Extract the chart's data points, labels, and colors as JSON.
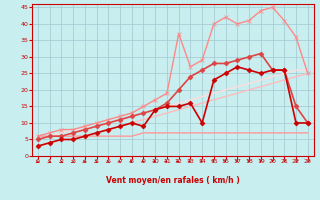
{
  "title": "",
  "xlabel": "Vent moyen/en rafales ( km/h )",
  "ylabel": "",
  "xlim": [
    -0.5,
    23.5
  ],
  "ylim": [
    0,
    46
  ],
  "xticks": [
    0,
    1,
    2,
    3,
    4,
    5,
    6,
    7,
    8,
    9,
    10,
    11,
    12,
    13,
    14,
    15,
    16,
    17,
    18,
    19,
    20,
    21,
    22,
    23
  ],
  "yticks": [
    0,
    5,
    10,
    15,
    20,
    25,
    30,
    35,
    40,
    45
  ],
  "background_color": "#c8eef0",
  "grid_color": "#a0c8d0",
  "series": [
    {
      "x": [
        0,
        1,
        2,
        3,
        4,
        5,
        6,
        7,
        8,
        9,
        10,
        11,
        12,
        13,
        14,
        15,
        16,
        17,
        18,
        19,
        20,
        21,
        22,
        23
      ],
      "y": [
        6,
        6,
        6,
        6,
        6,
        6,
        6,
        6,
        6,
        7,
        7,
        7,
        7,
        7,
        7,
        7,
        7,
        7,
        7,
        7,
        7,
        7,
        7,
        7
      ],
      "color": "#ff9999",
      "lw": 1.0,
      "marker": null,
      "ms": 0,
      "ls": "-"
    },
    {
      "x": [
        0,
        1,
        2,
        3,
        4,
        5,
        6,
        7,
        8,
        9,
        10,
        11,
        12,
        13,
        14,
        15,
        16,
        17,
        18,
        19,
        20,
        21,
        22,
        23
      ],
      "y": [
        3,
        4,
        5,
        5,
        6,
        7,
        8,
        9,
        10,
        11,
        12,
        13,
        14,
        15,
        16,
        17,
        18,
        19,
        20,
        21,
        22,
        23,
        24,
        25
      ],
      "color": "#ffbbbb",
      "lw": 1.0,
      "marker": null,
      "ms": 0,
      "ls": "-"
    },
    {
      "x": [
        0,
        1,
        2,
        3,
        4,
        5,
        6,
        7,
        8,
        9,
        10,
        11,
        12,
        13,
        14,
        15,
        16,
        17,
        18,
        19,
        20,
        21,
        22,
        23
      ],
      "y": [
        5,
        6,
        7,
        8,
        8,
        9,
        10,
        11,
        12,
        13,
        14,
        15,
        16,
        17,
        18,
        19,
        20,
        21,
        22,
        23,
        24,
        25,
        26,
        26
      ],
      "color": "#ffdddd",
      "lw": 1.0,
      "marker": null,
      "ms": 0,
      "ls": "-"
    },
    {
      "x": [
        0,
        1,
        2,
        3,
        4,
        5,
        6,
        7,
        8,
        9,
        10,
        11,
        12,
        13,
        14,
        15,
        16,
        17,
        18,
        19,
        20,
        21,
        22,
        23
      ],
      "y": [
        6,
        7,
        8,
        8,
        9,
        10,
        11,
        12,
        13,
        15,
        17,
        19,
        37,
        27,
        29,
        40,
        42,
        40,
        41,
        44,
        45,
        41,
        36,
        25
      ],
      "color": "#ff8888",
      "lw": 1.0,
      "marker": "x",
      "ms": 3,
      "ls": "-"
    },
    {
      "x": [
        0,
        1,
        2,
        3,
        4,
        5,
        6,
        7,
        8,
        9,
        10,
        11,
        12,
        13,
        14,
        15,
        16,
        17,
        18,
        19,
        20,
        21,
        22,
        23
      ],
      "y": [
        5,
        6,
        6,
        7,
        8,
        9,
        10,
        11,
        12,
        13,
        14,
        16,
        20,
        24,
        26,
        28,
        28,
        29,
        30,
        31,
        26,
        26,
        15,
        10
      ],
      "color": "#dd4444",
      "lw": 1.2,
      "marker": "D",
      "ms": 2.5,
      "ls": "-"
    },
    {
      "x": [
        0,
        1,
        2,
        3,
        4,
        5,
        6,
        7,
        8,
        9,
        10,
        11,
        12,
        13,
        14,
        15,
        16,
        17,
        18,
        19,
        20,
        21,
        22,
        23
      ],
      "y": [
        3,
        4,
        5,
        5,
        6,
        7,
        8,
        9,
        10,
        9,
        14,
        15,
        15,
        16,
        10,
        23,
        25,
        27,
        26,
        25,
        26,
        26,
        10,
        10
      ],
      "color": "#cc0000",
      "lw": 1.2,
      "marker": "D",
      "ms": 2.5,
      "ls": "-"
    }
  ],
  "arrow_angles": [
    45,
    45,
    42,
    40,
    38,
    35,
    33,
    30,
    28,
    25,
    22,
    20,
    18,
    15,
    13,
    10,
    8,
    5,
    3,
    0,
    -2,
    -5,
    -7,
    -10
  ]
}
